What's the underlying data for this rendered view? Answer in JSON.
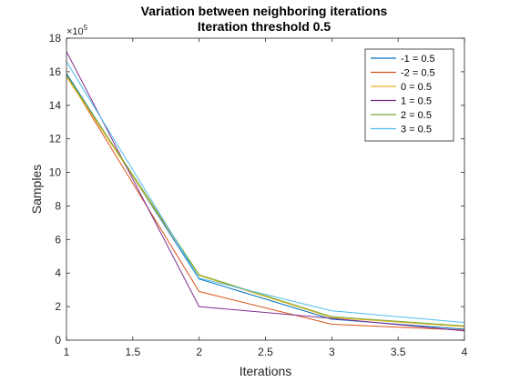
{
  "chart_data": {
    "type": "line",
    "title": [
      "Variation between neighboring iterations",
      "Iteration threshold 0.5"
    ],
    "xlabel": "Iterations",
    "ylabel": "Samples",
    "xlim": [
      1,
      4
    ],
    "ylim": [
      0,
      1800000
    ],
    "xticks": [
      1,
      1.5,
      2,
      2.5,
      3,
      3.5,
      4
    ],
    "xtick_labels": [
      "1",
      "1.5",
      "2",
      "2.5",
      "3",
      "3.5",
      "4"
    ],
    "yticks": [
      0,
      200000,
      400000,
      600000,
      800000,
      1000000,
      1200000,
      1400000,
      1600000,
      1800000
    ],
    "ytick_labels": [
      "0",
      "2",
      "4",
      "6",
      "8",
      "10",
      "12",
      "14",
      "16",
      "18"
    ],
    "y_exponent_label": "×10",
    "y_exponent_power": "5",
    "grid": false,
    "legend_position": "top-right",
    "x": [
      1,
      2,
      3,
      4
    ],
    "series": [
      {
        "name": "-1 = 0.5",
        "color": "#0072BD",
        "values": [
          1590000,
          365000,
          125000,
          65000
        ]
      },
      {
        "name": "-2 = 0.5",
        "color": "#D95319",
        "values": [
          1580000,
          290000,
          95000,
          60000
        ]
      },
      {
        "name": "0 = 0.5",
        "color": "#EDB120",
        "values": [
          1570000,
          385000,
          135000,
          80000
        ]
      },
      {
        "name": "1 = 0.5",
        "color": "#7E2F8E",
        "values": [
          1720000,
          200000,
          130000,
          55000
        ]
      },
      {
        "name": "2 = 0.5",
        "color": "#77AC30",
        "values": [
          1580000,
          390000,
          140000,
          85000
        ]
      },
      {
        "name": "3 = 0.5",
        "color": "#4DBEEE",
        "values": [
          1660000,
          370000,
          175000,
          105000
        ]
      }
    ]
  }
}
